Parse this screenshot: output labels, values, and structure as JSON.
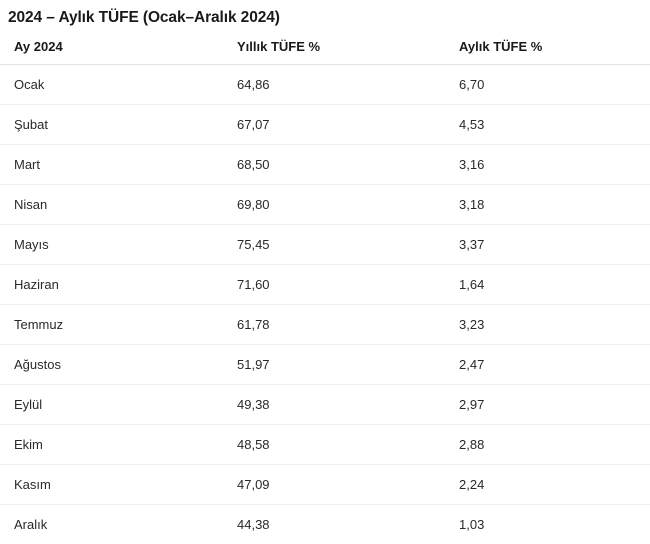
{
  "title": "2024 – Aylık TÜFE (Ocak–Aralık 2024)",
  "table": {
    "columns": [
      "Ay 2024",
      "Yıllık TÜFE %",
      "Aylık TÜFE %"
    ],
    "rows": [
      {
        "month": "Ocak",
        "yearly": "64,86",
        "monthly": "6,70"
      },
      {
        "month": "Şubat",
        "yearly": "67,07",
        "monthly": "4,53"
      },
      {
        "month": "Mart",
        "yearly": "68,50",
        "monthly": "3,16"
      },
      {
        "month": "Nisan",
        "yearly": "69,80",
        "monthly": "3,18"
      },
      {
        "month": "Mayıs",
        "yearly": "75,45",
        "monthly": "3,37"
      },
      {
        "month": "Haziran",
        "yearly": "71,60",
        "monthly": "1,64"
      },
      {
        "month": "Temmuz",
        "yearly": "61,78",
        "monthly": "3,23"
      },
      {
        "month": "Ağustos",
        "yearly": "51,97",
        "monthly": "2,47"
      },
      {
        "month": "Eylül",
        "yearly": "49,38",
        "monthly": "2,97"
      },
      {
        "month": "Ekim",
        "yearly": "48,58",
        "monthly": "2,88"
      },
      {
        "month": "Kasım",
        "yearly": "47,09",
        "monthly": "2,24"
      },
      {
        "month": "Aralık",
        "yearly": "44,38",
        "monthly": "1,03"
      }
    ]
  },
  "chart_data": {
    "type": "table",
    "title": "2024 – Aylık TÜFE (Ocak–Aralık 2024)",
    "columns": [
      "Ay 2024",
      "Yıllık TÜFE %",
      "Aylık TÜFE %"
    ],
    "categories": [
      "Ocak",
      "Şubat",
      "Mart",
      "Nisan",
      "Mayıs",
      "Haziran",
      "Temmuz",
      "Ağustos",
      "Eylül",
      "Ekim",
      "Kasım",
      "Aralık"
    ],
    "series": [
      {
        "name": "Yıllık TÜFE %",
        "values": [
          64.86,
          67.07,
          68.5,
          69.8,
          75.45,
          71.6,
          61.78,
          51.97,
          49.38,
          48.58,
          47.09,
          44.38
        ]
      },
      {
        "name": "Aylık TÜFE %",
        "values": [
          6.7,
          4.53,
          3.16,
          3.18,
          3.37,
          1.64,
          3.23,
          2.47,
          2.97,
          2.88,
          2.24,
          1.03
        ]
      }
    ]
  },
  "colors": {
    "background": "#ffffff",
    "title_text": "#1a1a1a",
    "body_text": "#292929",
    "header_border": "#e3e3e3",
    "row_border": "#f0f0f0"
  }
}
